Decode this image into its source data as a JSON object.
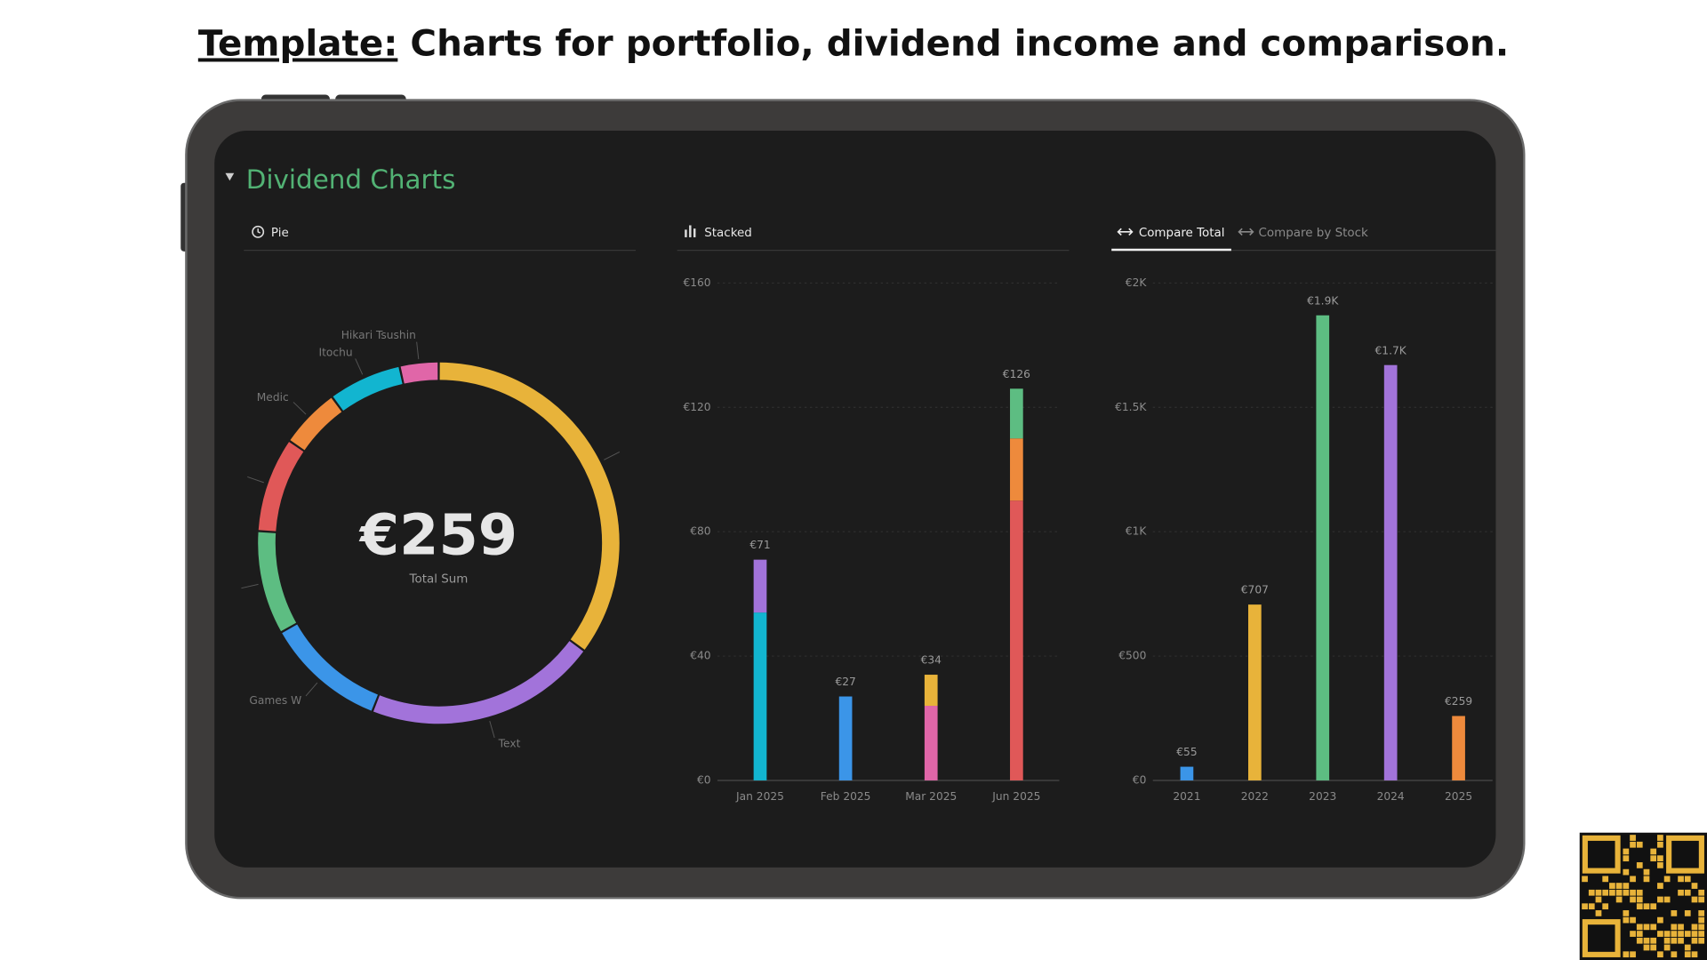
{
  "heading": {
    "prefix": "Template:",
    "text": " Charts for portfolio, dividend income and comparison."
  },
  "section_title": "Dividend Charts",
  "tabs": {
    "pie": "Pie",
    "stacked": "Stacked",
    "compare_total": "Compare Total",
    "compare_by_stock": "Compare by Stock"
  },
  "chart_data": [
    {
      "type": "pie",
      "center_label": "€259",
      "center_sublabel": "Total Sum",
      "categories": [
        null,
        "Text",
        "Games W",
        null,
        null,
        "Medic",
        "Itochu",
        "Hikari Tsushin"
      ],
      "values": [
        91,
        54,
        28,
        24,
        22,
        14,
        17,
        9
      ],
      "colors": [
        "#e8b33a",
        "#a273da",
        "#3b95e8",
        "#5dbd82",
        "#e05858",
        "#ee8a3c",
        "#12b5d0",
        "#e066a8"
      ]
    },
    {
      "type": "stacked_bar",
      "categories": [
        "Jan 2025",
        "Feb 2025",
        "Mar 2025",
        "Jun 2025"
      ],
      "series": [
        {
          "color": "#12b5d0",
          "values": [
            54,
            null,
            null,
            null
          ]
        },
        {
          "color": "#a273da",
          "values": [
            17,
            null,
            null,
            null
          ]
        },
        {
          "color": "#3b95e8",
          "values": [
            null,
            27,
            null,
            null
          ]
        },
        {
          "color": "#e066a8",
          "values": [
            null,
            null,
            24,
            null
          ]
        },
        {
          "color": "#e8b33a",
          "values": [
            null,
            null,
            10,
            null
          ]
        },
        {
          "color": "#e05858",
          "values": [
            null,
            null,
            null,
            90
          ]
        },
        {
          "color": "#ee8a3c",
          "values": [
            null,
            null,
            null,
            20
          ]
        },
        {
          "color": "#5dbd82",
          "values": [
            null,
            null,
            null,
            16
          ]
        }
      ],
      "total_labels": [
        "€71",
        "€27",
        "€34",
        "€126"
      ],
      "ylim": [
        0,
        160
      ],
      "yticks": [
        {
          "value": 0,
          "label": "€0"
        },
        {
          "value": 40,
          "label": "€40"
        },
        {
          "value": 80,
          "label": "€80"
        },
        {
          "value": 120,
          "label": "€120"
        },
        {
          "value": 160,
          "label": "€160"
        }
      ],
      "grid": true
    },
    {
      "type": "bar",
      "categories": [
        "2021",
        "2022",
        "2023",
        "2024",
        "2025"
      ],
      "values": [
        55,
        707,
        1870,
        1670,
        259
      ],
      "value_labels": [
        "€55",
        "€707",
        "€1.9K",
        "€1.7K",
        "€259"
      ],
      "colors": [
        "#3b95e8",
        "#e8b33a",
        "#5dbd82",
        "#a273da",
        "#ee8a3c"
      ],
      "ylim": [
        0,
        2000
      ],
      "yticks": [
        {
          "value": 0,
          "label": "€0"
        },
        {
          "value": 500,
          "label": "€500"
        },
        {
          "value": 1000,
          "label": "€1K"
        },
        {
          "value": 1500,
          "label": "€1.5K"
        },
        {
          "value": 2000,
          "label": "€2K"
        }
      ],
      "grid": true
    }
  ]
}
